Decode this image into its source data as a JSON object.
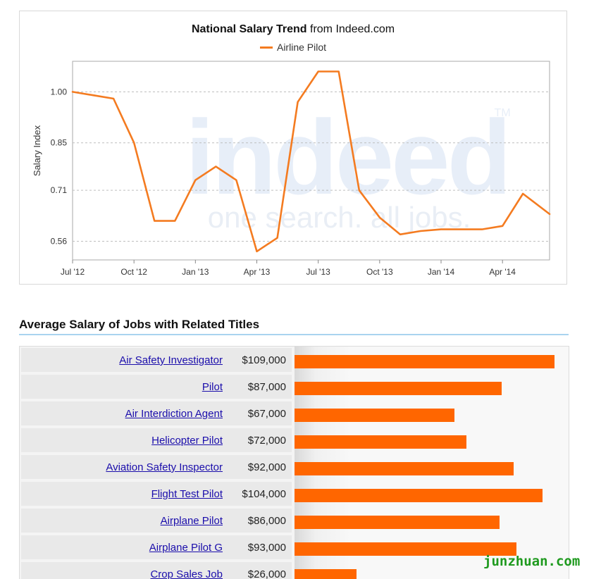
{
  "chart_data": {
    "type": "line",
    "title_bold": "National Salary Trend",
    "title_rest": "from Indeed.com",
    "ylabel": "Salary Index",
    "xlabel": "",
    "legend": "top",
    "grid": true,
    "ylim": [
      0.505,
      1.09
    ],
    "y_ticks": [
      "1.00",
      "0.85",
      "0.71",
      "0.56"
    ],
    "y_tick_values": [
      1.0,
      0.85,
      0.71,
      0.56
    ],
    "x_ticks": [
      "Jul '12",
      "Oct '12",
      "Jan '13",
      "Apr '13",
      "Jul '13",
      "Oct '13",
      "Jan '14",
      "Apr '14"
    ],
    "x_tick_months": [
      0,
      3,
      6,
      9,
      12,
      15,
      18,
      21
    ],
    "xlim_months": [
      0,
      23.3
    ],
    "series": [
      {
        "name": "Airline Pilot",
        "color": "#f47b20",
        "x_months": [
          0,
          1,
          2,
          3,
          4,
          5,
          6,
          7,
          8,
          9,
          10,
          11,
          12,
          13,
          14,
          15,
          16,
          17,
          18,
          19,
          20,
          21,
          22,
          23.3
        ],
        "values": [
          1.0,
          0.99,
          0.98,
          0.85,
          0.62,
          0.62,
          0.74,
          0.78,
          0.74,
          0.53,
          0.57,
          0.97,
          1.06,
          1.06,
          0.71,
          0.63,
          0.58,
          0.59,
          0.595,
          0.595,
          0.595,
          0.605,
          0.7,
          0.64
        ]
      }
    ],
    "watermark": {
      "logo": "indeed",
      "tm": "TM",
      "slogan": "one search. all jobs."
    }
  },
  "section": {
    "title": "Average Salary of Jobs with Related Titles"
  },
  "salary_scale_max": 115000,
  "jobs": [
    {
      "title": "Air Safety Investigator",
      "salary": "$109,000",
      "value": 109000
    },
    {
      "title": "Pilot",
      "salary": "$87,000",
      "value": 87000
    },
    {
      "title": "Air Interdiction Agent",
      "salary": "$67,000",
      "value": 67000
    },
    {
      "title": "Helicopter Pilot",
      "salary": "$72,000",
      "value": 72000
    },
    {
      "title": "Aviation Safety Inspector",
      "salary": "$92,000",
      "value": 92000
    },
    {
      "title": "Flight Test Pilot",
      "salary": "$104,000",
      "value": 104000
    },
    {
      "title": "Airplane Pilot",
      "salary": "$86,000",
      "value": 86000
    },
    {
      "title": "Airplane Pilot G",
      "salary": "$93,000",
      "value": 93000
    },
    {
      "title": "Crop Sales Job",
      "salary": "$26,000",
      "value": 26000
    }
  ],
  "site_watermark": "junzhuan.com"
}
